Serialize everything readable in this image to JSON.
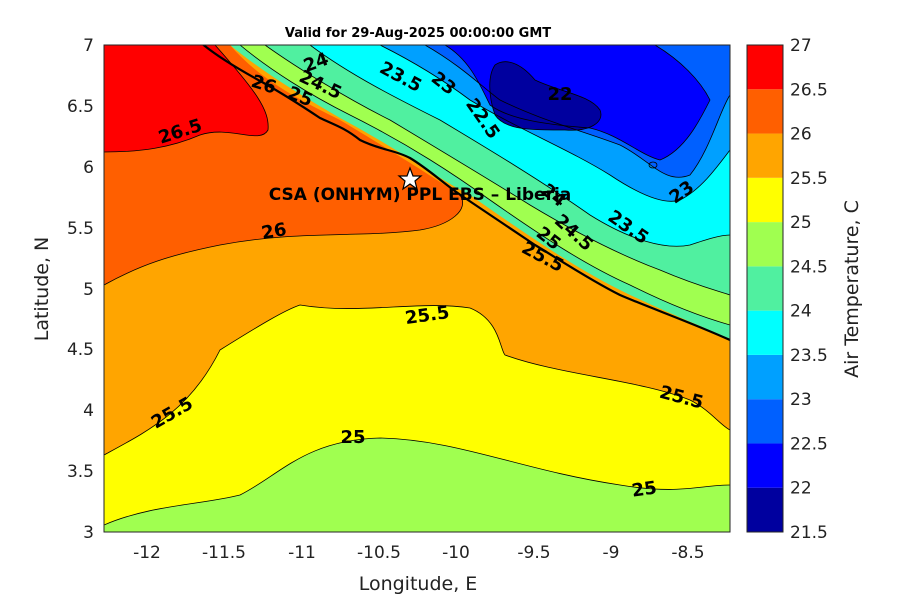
{
  "chart_data": {
    "type": "heatmap",
    "subtype": "filled-contour-map",
    "title": "Valid for 29-Aug-2025 00:00:00 GMT",
    "xlabel": "Longitude, E",
    "ylabel": "Latitude, N",
    "xlim": [
      -12.3,
      -8.25
    ],
    "ylim": [
      3,
      7
    ],
    "xticks": [
      "-12",
      "-11.5",
      "-11",
      "-10.5",
      "-10",
      "-9.5",
      "-9",
      "-8.5"
    ],
    "yticks": [
      "3",
      "3.5",
      "4",
      "4.5",
      "5",
      "5.5",
      "6",
      "6.5",
      "7"
    ],
    "colorbar": {
      "label": "Air Temperature, C",
      "ticks": [
        "21.5",
        "22",
        "22.5",
        "23",
        "23.5",
        "24",
        "24.5",
        "25",
        "25.5",
        "26",
        "26.5",
        "27"
      ],
      "levels": [
        21.5,
        22,
        22.5,
        23,
        23.5,
        24,
        24.5,
        25,
        25.5,
        26,
        26.5,
        27
      ],
      "colors": [
        "#00009f",
        "#0000ff",
        "#0060ff",
        "#00a0ff",
        "#00ffff",
        "#50f0a0",
        "#a0ff50",
        "#ffff00",
        "#ffa500",
        "#ff5f00",
        "#ff0000",
        "#a00000"
      ]
    },
    "contour_labels": [
      "24",
      "23.5",
      "23",
      "22",
      "22.5",
      "26",
      "25",
      "24.5",
      "26.5",
      "24",
      "24.5",
      "23.5",
      "23",
      "26",
      "25",
      "25.5",
      "25.5",
      "25.5",
      "25.5",
      "25",
      "25"
    ],
    "site": {
      "label": "CSA (ONHYM) PPL EBS  – Liberia",
      "lon": -10.28,
      "lat": 5.93
    },
    "grid": false
  }
}
